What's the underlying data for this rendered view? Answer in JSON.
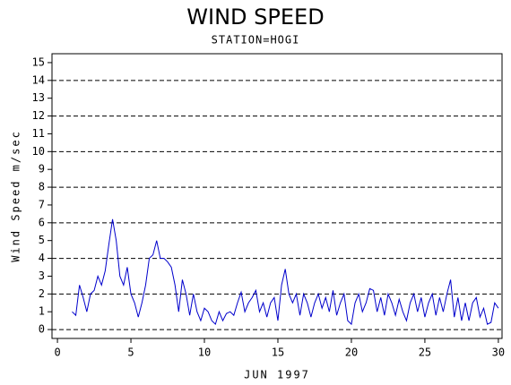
{
  "chart_data": {
    "type": "line",
    "title": "WIND SPEED",
    "subtitle": "STATION=HOGI",
    "y_label": "Wind Speed m/sec",
    "x_label": "JUN 1997",
    "color": "#0000cc",
    "x": [
      1,
      1.25,
      1.5,
      1.75,
      2,
      2.25,
      2.5,
      2.75,
      3,
      3.25,
      3.5,
      3.75,
      4,
      4.25,
      4.5,
      4.75,
      5,
      5.25,
      5.5,
      5.75,
      6,
      6.25,
      6.5,
      6.75,
      7,
      7.25,
      7.5,
      7.75,
      8,
      8.25,
      8.5,
      8.75,
      9,
      9.25,
      9.5,
      9.75,
      10,
      10.25,
      10.5,
      10.75,
      11,
      11.25,
      11.5,
      11.75,
      12,
      12.25,
      12.5,
      12.75,
      13,
      13.25,
      13.5,
      13.75,
      14,
      14.25,
      14.5,
      14.75,
      15,
      15.25,
      15.5,
      15.75,
      16,
      16.25,
      16.5,
      16.75,
      17,
      17.25,
      17.5,
      17.75,
      18,
      18.25,
      18.5,
      18.75,
      19,
      19.25,
      19.5,
      19.75,
      20,
      20.25,
      20.5,
      20.75,
      21,
      21.25,
      21.5,
      21.75,
      22,
      22.25,
      22.5,
      22.75,
      23,
      23.25,
      23.5,
      23.75,
      24,
      24.25,
      24.5,
      24.75,
      25,
      25.25,
      25.5,
      25.75,
      26,
      26.25,
      26.5,
      26.75,
      27,
      27.25,
      27.5,
      27.75,
      28,
      28.25,
      28.5,
      28.75,
      29,
      29.25,
      29.5,
      29.75,
      30
    ],
    "values": [
      1.0,
      0.8,
      2.5,
      1.8,
      1.0,
      2.0,
      2.2,
      3.0,
      2.5,
      3.3,
      4.8,
      6.2,
      5.0,
      3.0,
      2.5,
      3.5,
      2.0,
      1.5,
      0.7,
      1.5,
      2.5,
      4.0,
      4.2,
      5.0,
      4.0,
      4.0,
      3.8,
      3.5,
      2.5,
      1.0,
      2.8,
      2.0,
      0.8,
      2.0,
      1.0,
      0.5,
      1.2,
      1.0,
      0.5,
      0.3,
      1.0,
      0.5,
      0.9,
      1.0,
      0.8,
      1.5,
      2.1,
      1.0,
      1.5,
      1.8,
      2.2,
      1.0,
      1.5,
      0.7,
      1.5,
      1.8,
      0.5,
      2.5,
      3.4,
      2.0,
      1.5,
      2.0,
      0.8,
      2.0,
      1.5,
      0.7,
      1.5,
      2.0,
      1.2,
      1.8,
      1.0,
      2.2,
      0.8,
      1.5,
      2.0,
      0.5,
      0.3,
      1.5,
      2.0,
      1.0,
      1.5,
      2.3,
      2.2,
      1.0,
      1.8,
      0.8,
      2.0,
      1.5,
      0.8,
      1.7,
      1.0,
      0.5,
      1.5,
      2.0,
      1.0,
      1.8,
      0.7,
      1.5,
      2.0,
      0.8,
      1.8,
      1.0,
      2.0,
      2.8,
      0.7,
      1.8,
      0.5,
      1.5,
      0.5,
      1.5,
      1.8,
      0.7,
      1.2,
      0.3,
      0.4,
      1.5,
      1.2
    ],
    "xlim": [
      -0.37,
      30.25
    ],
    "xticks": [
      0,
      5,
      10,
      15,
      20,
      25,
      30
    ],
    "ylim": [
      -0.5,
      15.5
    ],
    "yticks": [
      0,
      1,
      2,
      3,
      4,
      5,
      6,
      7,
      8,
      9,
      10,
      11,
      12,
      13,
      14,
      15
    ],
    "ygrid": [
      0,
      2,
      4,
      6,
      8,
      10,
      12,
      14
    ]
  }
}
